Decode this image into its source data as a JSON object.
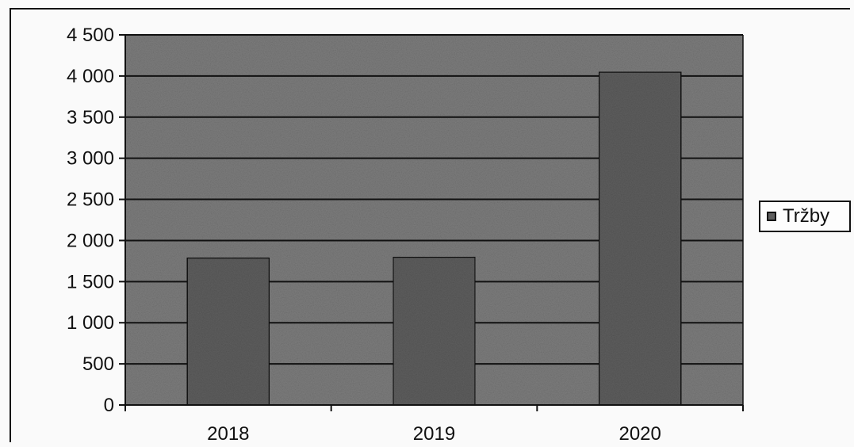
{
  "chart_data": {
    "type": "bar",
    "categories": [
      "2018",
      "2019",
      "2020"
    ],
    "series": [
      {
        "name": "Tržby",
        "values": [
          1790,
          1800,
          4050
        ]
      }
    ],
    "ylim": [
      0,
      4500
    ],
    "yticks": [
      "0",
      "500",
      "1 000",
      "1 500",
      "2 000",
      "2 500",
      "3 000",
      "3 500",
      "4 000",
      "4 500"
    ],
    "title": "",
    "xlabel": "",
    "ylabel": "",
    "grid": true,
    "legend_position": "right",
    "colors": {
      "plot_bg": "#7d7d7d",
      "bar": "#5e5e5e",
      "line": "#111111"
    }
  }
}
